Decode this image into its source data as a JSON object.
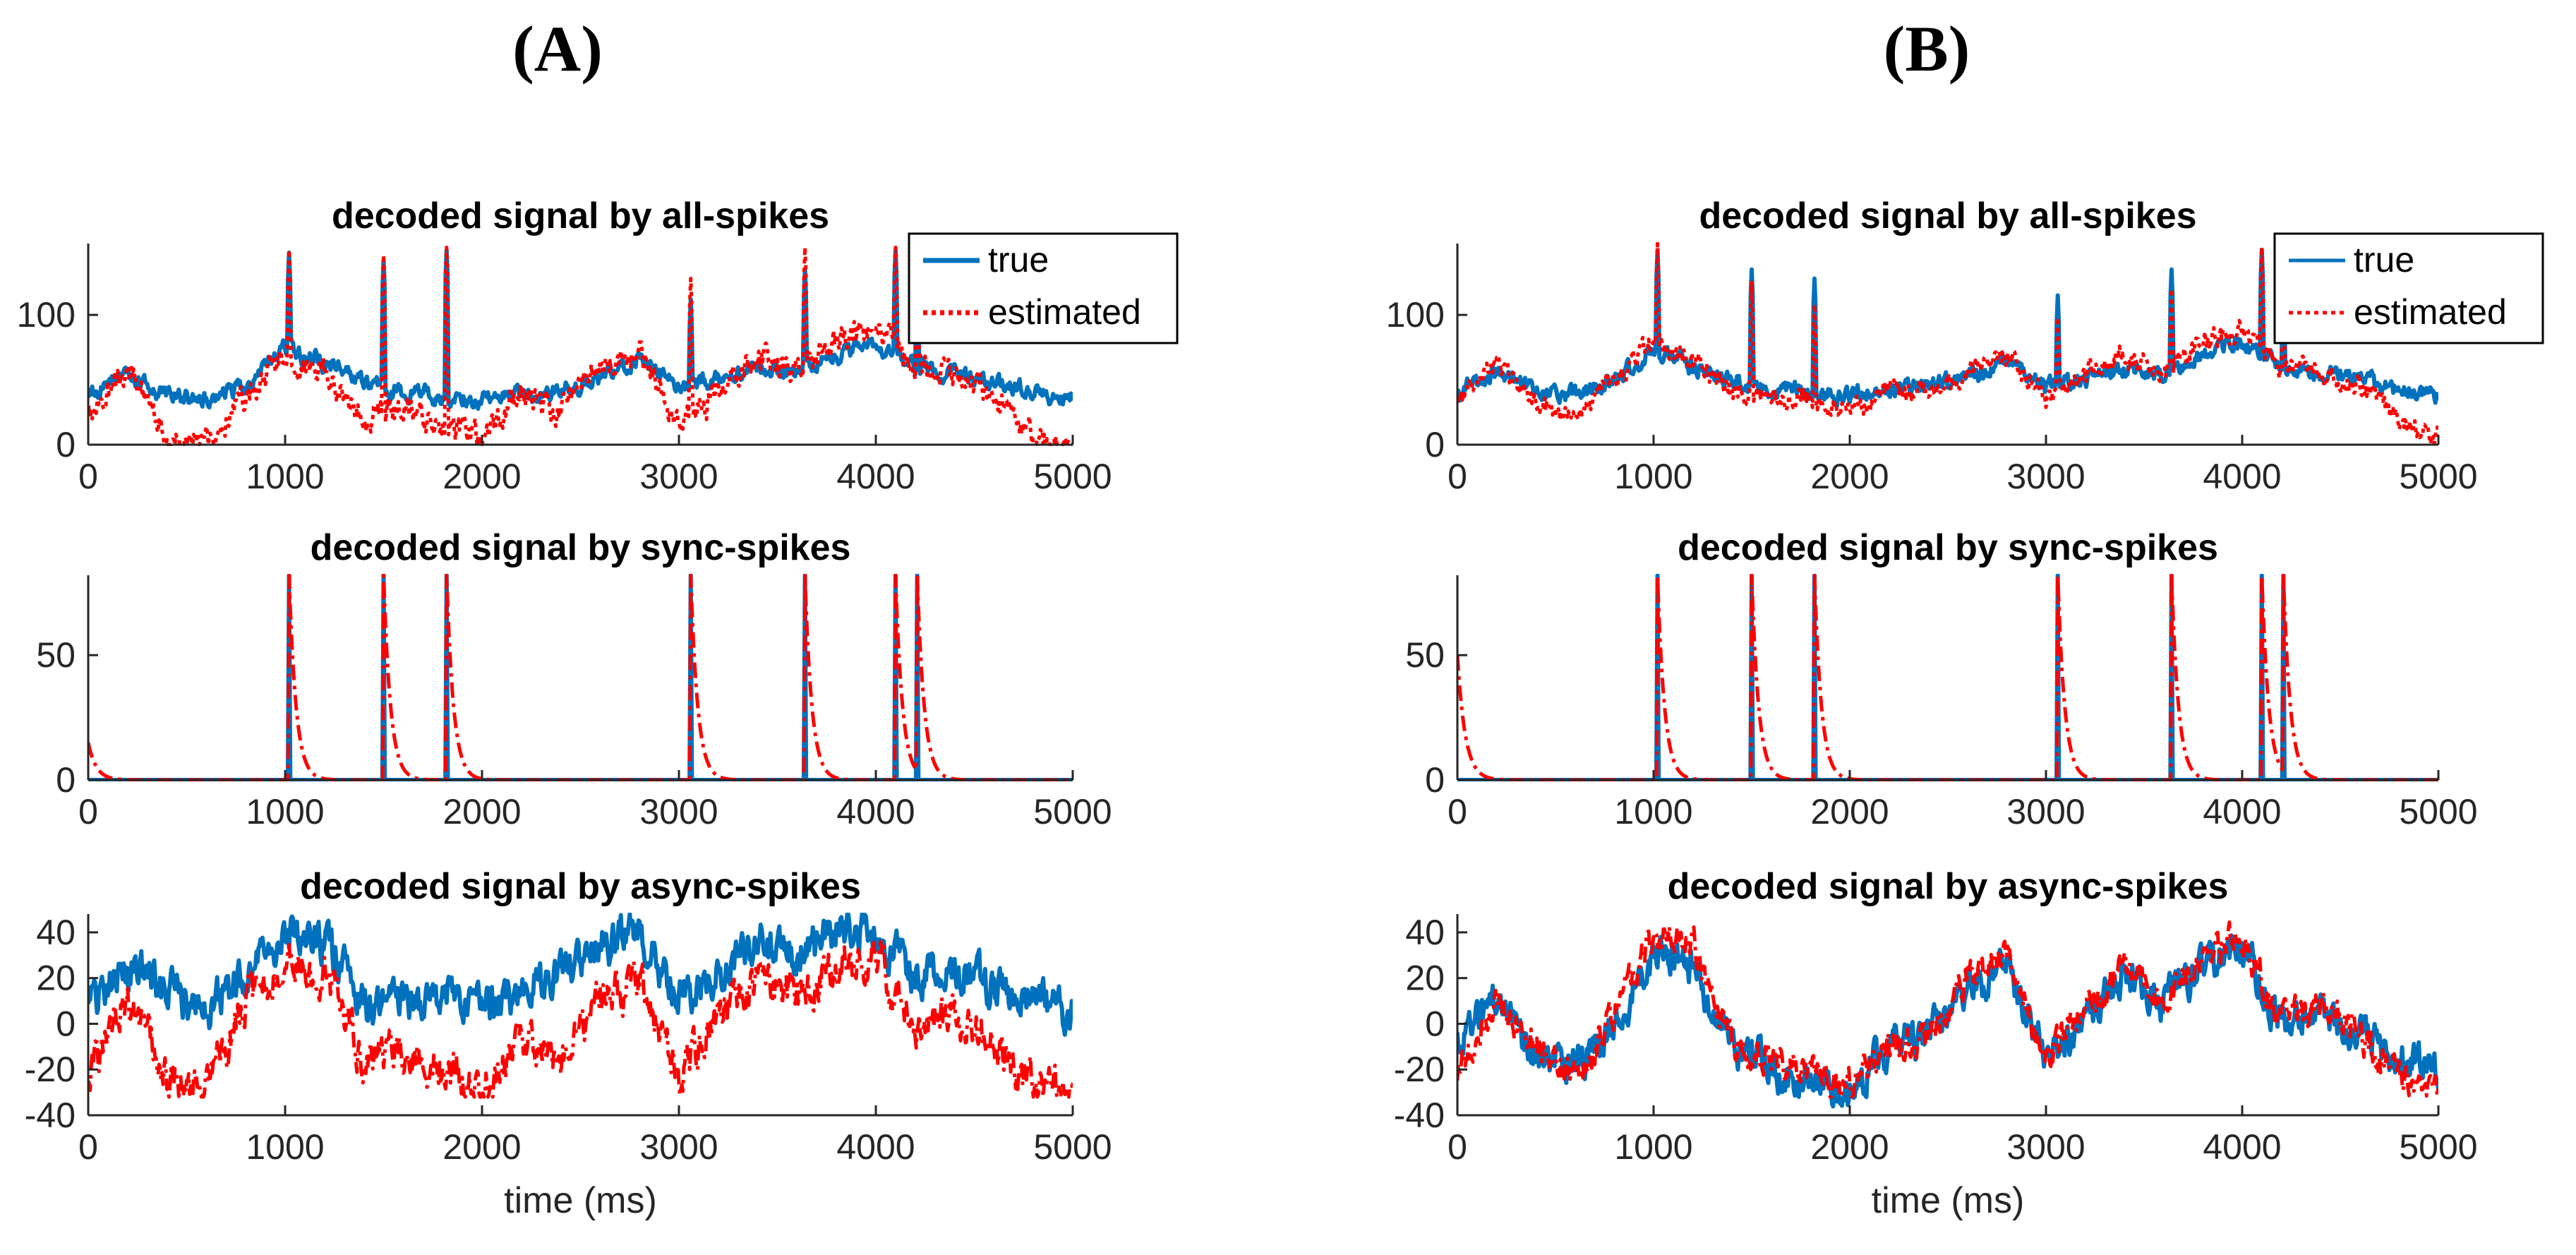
{
  "figure": {
    "panel_labels": [
      "(A)",
      "(B)"
    ]
  },
  "colors": {
    "true": "#0072BD",
    "estimated": "#FF0000",
    "axis": "#262626"
  },
  "chart_data": [
    {
      "type": "line",
      "panel": "A",
      "row": 0,
      "title": "decoded signal by all-spikes",
      "xlabel": "",
      "ylabel": "",
      "xlim": [
        0,
        5000
      ],
      "ylim": [
        0,
        155
      ],
      "xticks": [
        0,
        1000,
        2000,
        3000,
        4000,
        5000
      ],
      "yticks": [
        0,
        100
      ],
      "legend": {
        "placement": "top-right",
        "entries": [
          "true",
          "estimated"
        ],
        "style": "bold"
      },
      "series": [
        {
          "name": "true",
          "style": "solid",
          "stroke_weight": "bold",
          "kind": "noisy",
          "seed": 11,
          "base": 40,
          "noise": 10,
          "spikes": [
            [
              1020,
              148
            ],
            [
              1500,
              142
            ],
            [
              1820,
              150
            ],
            [
              3060,
              112
            ],
            [
              3640,
              135
            ],
            [
              4100,
              150
            ],
            [
              4210,
              145
            ]
          ],
          "x": [
            0,
            200,
            400,
            600,
            800,
            1000,
            1200,
            1400,
            1600,
            1800,
            2000,
            2200,
            2400,
            2600,
            2800,
            3000,
            3200,
            3400,
            3600,
            3800,
            4000,
            4200,
            4400,
            4600,
            4800,
            5000
          ],
          "values": [
            40,
            55,
            38,
            36,
            45,
            75,
            62,
            48,
            40,
            38,
            35,
            38,
            42,
            50,
            68,
            45,
            50,
            58,
            55,
            70,
            78,
            60,
            55,
            48,
            40,
            35
          ]
        },
        {
          "name": "estimated",
          "style": "dotted",
          "stroke_weight": "bold",
          "kind": "noisy",
          "seed": 12,
          "base": 0,
          "noise": 16,
          "spikes": [
            [
              1020,
              150
            ],
            [
              1500,
              146
            ],
            [
              1820,
              152
            ],
            [
              3060,
              128
            ],
            [
              3640,
              152
            ],
            [
              4100,
              152
            ],
            [
              4210,
              150
            ]
          ],
          "x": [
            0,
            200,
            400,
            600,
            800,
            1000,
            1200,
            1400,
            1600,
            1800,
            2000,
            2200,
            2400,
            2600,
            2800,
            3000,
            3200,
            3400,
            3600,
            3800,
            4000,
            4200,
            4400,
            4600,
            4800,
            5000
          ],
          "values": [
            20,
            60,
            5,
            0,
            40,
            70,
            55,
            20,
            30,
            15,
            5,
            40,
            25,
            60,
            70,
            15,
            40,
            70,
            55,
            80,
            90,
            60,
            55,
            40,
            5,
            0
          ]
        }
      ]
    },
    {
      "type": "line",
      "panel": "A",
      "row": 1,
      "title": "decoded signal by sync-spikes",
      "xlabel": "",
      "ylabel": "",
      "xlim": [
        0,
        5000
      ],
      "ylim": [
        0,
        82
      ],
      "xticks": [
        0,
        1000,
        2000,
        3000,
        4000,
        5000
      ],
      "yticks": [
        0,
        50
      ],
      "series": [
        {
          "name": "true",
          "style": "solid",
          "kind": "spikes",
          "base": 0,
          "spikes": [
            [
              1020,
              82
            ],
            [
              1500,
              82
            ],
            [
              1820,
              82
            ],
            [
              3060,
              82
            ],
            [
              3640,
              82
            ],
            [
              4100,
              82
            ],
            [
              4210,
              82
            ]
          ]
        },
        {
          "name": "estimated",
          "style": "dashdot",
          "kind": "decay",
          "base": 0,
          "start": 15,
          "spikes": [
            [
              1020,
              82
            ],
            [
              1500,
              82
            ],
            [
              1820,
              82
            ],
            [
              3060,
              82
            ],
            [
              3640,
              82
            ],
            [
              4100,
              82
            ],
            [
              4210,
              82
            ]
          ]
        }
      ]
    },
    {
      "type": "line",
      "panel": "A",
      "row": 2,
      "title": "decoded signal by async-spikes",
      "xlabel": "time (ms)",
      "ylabel": "",
      "xlim": [
        0,
        5000
      ],
      "ylim": [
        -40,
        48
      ],
      "xticks": [
        0,
        1000,
        2000,
        3000,
        4000,
        5000
      ],
      "yticks": [
        -40,
        -20,
        0,
        20,
        40
      ],
      "series": [
        {
          "name": "true",
          "style": "solid",
          "kind": "noisy",
          "seed": 31,
          "base": 0,
          "noise": 14,
          "clip": [
            -40,
            48
          ],
          "x": [
            0,
            200,
            400,
            600,
            800,
            1000,
            1200,
            1400,
            1600,
            1800,
            2000,
            2200,
            2400,
            2600,
            2800,
            3000,
            3200,
            3400,
            3600,
            3800,
            4000,
            4200,
            4400,
            4600,
            4800,
            5000
          ],
          "values": [
            10,
            25,
            15,
            5,
            20,
            40,
            35,
            10,
            5,
            15,
            5,
            15,
            20,
            35,
            40,
            10,
            20,
            35,
            30,
            40,
            42,
            20,
            25,
            15,
            10,
            5
          ]
        },
        {
          "name": "estimated",
          "style": "dashdot",
          "kind": "noisy",
          "seed": 32,
          "base": 0,
          "noise": 14,
          "clip": [
            -32,
            48
          ],
          "x": [
            0,
            200,
            400,
            600,
            800,
            1000,
            1200,
            1400,
            1600,
            1800,
            2000,
            2200,
            2400,
            2600,
            2800,
            3000,
            3200,
            3400,
            3600,
            3800,
            4000,
            4200,
            4400,
            4600,
            4800,
            5000
          ],
          "values": [
            -25,
            15,
            -25,
            -30,
            10,
            30,
            20,
            -15,
            -10,
            -20,
            -28,
            -10,
            -15,
            10,
            20,
            -25,
            5,
            20,
            10,
            25,
            30,
            -5,
            5,
            -10,
            -28,
            -32
          ]
        }
      ]
    },
    {
      "type": "line",
      "panel": "B",
      "row": 0,
      "title": "decoded signal by all-spikes",
      "xlabel": "",
      "ylabel": "",
      "xlim": [
        0,
        5000
      ],
      "ylim": [
        0,
        155
      ],
      "xticks": [
        0,
        1000,
        2000,
        3000,
        4000,
        5000
      ],
      "yticks": [
        0,
        100
      ],
      "legend": {
        "placement": "top-right",
        "entries": [
          "true",
          "estimated"
        ],
        "style": "thin"
      },
      "series": [
        {
          "name": "true",
          "style": "solid",
          "kind": "noisy",
          "seed": 41,
          "base": 40,
          "noise": 10,
          "spikes": [
            [
              1020,
              150
            ],
            [
              1500,
              135
            ],
            [
              1820,
              128
            ],
            [
              3060,
              115
            ],
            [
              3640,
              135
            ],
            [
              4100,
              150
            ],
            [
              4210,
              125
            ]
          ],
          "x": [
            0,
            200,
            400,
            600,
            800,
            1000,
            1200,
            1400,
            1600,
            1800,
            2000,
            2200,
            2400,
            2600,
            2800,
            3000,
            3200,
            3400,
            3600,
            3800,
            4000,
            4200,
            4400,
            4600,
            4800,
            5000
          ],
          "values": [
            40,
            55,
            40,
            38,
            50,
            72,
            60,
            48,
            42,
            40,
            38,
            42,
            45,
            52,
            65,
            45,
            50,
            58,
            55,
            70,
            80,
            60,
            55,
            50,
            42,
            38
          ]
        },
        {
          "name": "estimated",
          "style": "dotted",
          "kind": "noisy",
          "seed": 42,
          "base": 0,
          "noise": 12,
          "spikes": [
            [
              1020,
              155
            ],
            [
              1500,
              125
            ],
            [
              1820,
              108
            ],
            [
              3060,
              98
            ],
            [
              3640,
              120
            ],
            [
              4100,
              152
            ],
            [
              4210,
              100
            ]
          ],
          "x": [
            0,
            200,
            400,
            600,
            800,
            1000,
            1200,
            1400,
            1600,
            1800,
            2000,
            2200,
            2400,
            2600,
            2800,
            3000,
            3200,
            3400,
            3600,
            3800,
            4000,
            4200,
            4400,
            4600,
            4800,
            5000
          ],
          "values": [
            35,
            60,
            30,
            20,
            50,
            80,
            65,
            40,
            38,
            35,
            25,
            42,
            40,
            55,
            70,
            35,
            55,
            70,
            55,
            80,
            90,
            60,
            55,
            45,
            20,
            5
          ]
        }
      ]
    },
    {
      "type": "line",
      "panel": "B",
      "row": 1,
      "title": "decoded signal by sync-spikes",
      "xlabel": "",
      "ylabel": "",
      "xlim": [
        0,
        5000
      ],
      "ylim": [
        0,
        82
      ],
      "xticks": [
        0,
        1000,
        2000,
        3000,
        4000,
        5000
      ],
      "yticks": [
        0,
        50
      ],
      "series": [
        {
          "name": "true",
          "style": "solid",
          "kind": "spikes",
          "base": 0,
          "spikes": [
            [
              1020,
              82
            ],
            [
              1500,
              82
            ],
            [
              1820,
              82
            ],
            [
              3060,
              82
            ],
            [
              3640,
              82
            ],
            [
              4100,
              82
            ],
            [
              4210,
              82
            ]
          ]
        },
        {
          "name": "estimated",
          "style": "dashdot",
          "kind": "decay",
          "base": 0,
          "start": 50,
          "spikes": [
            [
              1020,
              82
            ],
            [
              1500,
              82
            ],
            [
              1820,
              82
            ],
            [
              3060,
              82
            ],
            [
              3640,
              82
            ],
            [
              4100,
              82
            ],
            [
              4210,
              82
            ]
          ]
        }
      ]
    },
    {
      "type": "line",
      "panel": "B",
      "row": 2,
      "title": "decoded signal by async-spikes",
      "xlabel": "time (ms)",
      "ylabel": "",
      "xlim": [
        0,
        5000
      ],
      "ylim": [
        -40,
        48
      ],
      "xticks": [
        0,
        1000,
        2000,
        3000,
        4000,
        5000
      ],
      "yticks": [
        -40,
        -20,
        0,
        20,
        40
      ],
      "series": [
        {
          "name": "true",
          "style": "solid",
          "kind": "noisy",
          "seed": 51,
          "base": 0,
          "noise": 13,
          "clip": [
            -40,
            48
          ],
          "x": [
            0,
            200,
            400,
            600,
            800,
            1000,
            1200,
            1400,
            1600,
            1800,
            2000,
            2200,
            2400,
            2600,
            2800,
            3000,
            3200,
            3400,
            3600,
            3800,
            4000,
            4200,
            4400,
            4600,
            4800,
            5000
          ],
          "values": [
            -10,
            10,
            -15,
            -20,
            0,
            30,
            25,
            -10,
            -20,
            -25,
            -30,
            -10,
            -5,
            15,
            25,
            -15,
            0,
            20,
            10,
            25,
            35,
            0,
            5,
            -5,
            -15,
            -20
          ]
        },
        {
          "name": "estimated",
          "style": "dashdot",
          "kind": "noisy",
          "seed": 52,
          "base": 0,
          "noise": 11,
          "clip": [
            -32,
            48
          ],
          "x": [
            0,
            200,
            400,
            600,
            800,
            1000,
            1200,
            1400,
            1600,
            1800,
            2000,
            2200,
            2400,
            2600,
            2800,
            3000,
            3200,
            3400,
            3600,
            3800,
            4000,
            4200,
            4400,
            4600,
            4800,
            5000
          ],
          "values": [
            -20,
            10,
            -10,
            -25,
            5,
            40,
            35,
            -10,
            -15,
            -20,
            -28,
            -10,
            -5,
            20,
            30,
            -15,
            5,
            25,
            10,
            30,
            40,
            0,
            10,
            -5,
            -25,
            -30
          ]
        }
      ]
    }
  ]
}
